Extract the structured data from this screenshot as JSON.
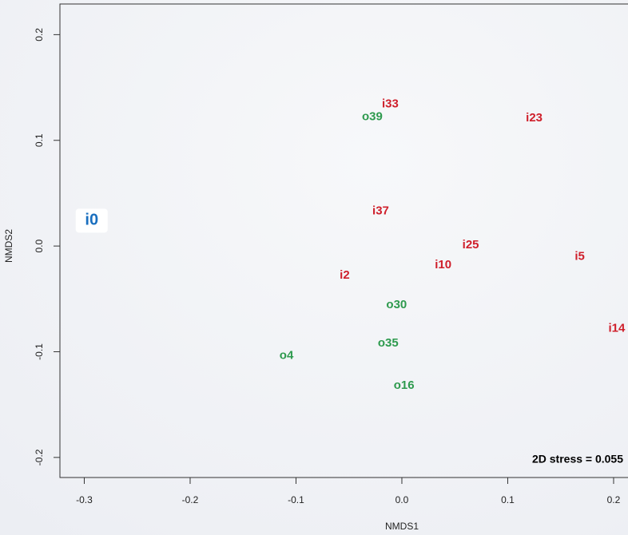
{
  "chart_data": {
    "type": "scatter",
    "xlabel": "NMDS1",
    "ylabel": "NMDS2",
    "annotation": "2D stress = 0.055",
    "xlim": [
      -0.323,
      0.2136
    ],
    "ylim": [
      -0.219,
      0.229
    ],
    "xticks": [
      -0.3,
      -0.2,
      -0.1,
      {
        "value": 0,
        "label": "0.0"
      },
      0.1,
      0.2
    ],
    "yticks": [
      -0.2,
      -0.1,
      {
        "value": 0,
        "label": "0.0"
      },
      0.1,
      0.2
    ],
    "points": [
      {
        "label": "i0",
        "x": -0.293,
        "y": 0.024,
        "color": "#1a6fbf",
        "highlight": true
      },
      {
        "label": "i33",
        "x": -0.011,
        "y": 0.134,
        "color": "#cf1f2b"
      },
      {
        "label": "o39",
        "x": -0.028,
        "y": 0.122,
        "color": "#2e9a4e"
      },
      {
        "label": "i23",
        "x": 0.125,
        "y": 0.121,
        "color": "#cf1f2b"
      },
      {
        "label": "i37",
        "x": -0.02,
        "y": 0.033,
        "color": "#cf1f2b"
      },
      {
        "label": "i25",
        "x": 0.065,
        "y": 0.001,
        "color": "#cf1f2b"
      },
      {
        "label": "i10",
        "x": 0.039,
        "y": -0.018,
        "color": "#cf1f2b"
      },
      {
        "label": "i5",
        "x": 0.168,
        "y": -0.01,
        "color": "#cf1f2b"
      },
      {
        "label": "i2",
        "x": -0.054,
        "y": -0.028,
        "color": "#cf1f2b"
      },
      {
        "label": "o30",
        "x": -0.005,
        "y": -0.056,
        "color": "#2e9a4e"
      },
      {
        "label": "i14",
        "x": 0.203,
        "y": -0.078,
        "color": "#cf1f2b"
      },
      {
        "label": "o35",
        "x": -0.013,
        "y": -0.092,
        "color": "#2e9a4e"
      },
      {
        "label": "o4",
        "x": -0.109,
        "y": -0.104,
        "color": "#2e9a4e"
      },
      {
        "label": "o16",
        "x": 0.002,
        "y": -0.132,
        "color": "#2e9a4e"
      }
    ]
  }
}
